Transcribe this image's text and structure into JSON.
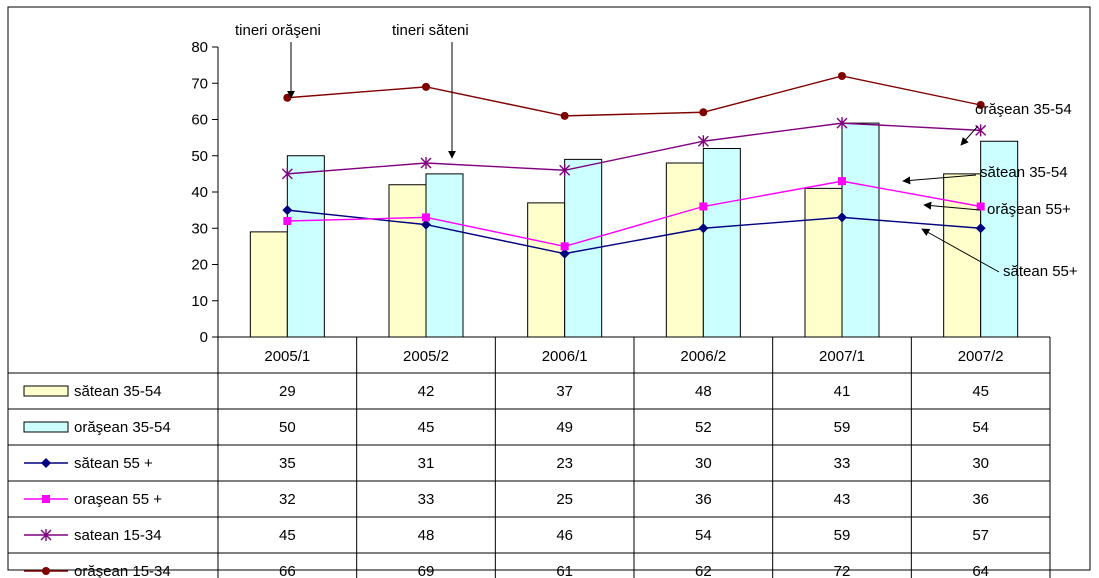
{
  "chart_data": {
    "type": "bar",
    "categories": [
      "2005/1",
      "2005/2",
      "2006/1",
      "2006/2",
      "2007/1",
      "2007/2"
    ],
    "ylim": [
      0,
      80
    ],
    "yticks": [
      0,
      10,
      20,
      30,
      40,
      50,
      60,
      70,
      80
    ],
    "grid": false,
    "legend_placement": "data-table-left",
    "series": [
      {
        "name": "sătean 35-54",
        "kind": "bar",
        "color": "#FFFFCC",
        "values": [
          29,
          42,
          37,
          48,
          41,
          45
        ]
      },
      {
        "name": "orăşean 35-54",
        "kind": "bar",
        "color": "#CCFFFF",
        "values": [
          50,
          45,
          49,
          52,
          59,
          54
        ]
      },
      {
        "name": "sătean 55 +",
        "kind": "line",
        "marker": "diamond",
        "color": "#000080",
        "values": [
          35,
          31,
          23,
          30,
          33,
          30
        ]
      },
      {
        "name": "oraşean 55 +",
        "kind": "line",
        "marker": "square",
        "color": "#FF00FF",
        "values": [
          32,
          33,
          25,
          36,
          43,
          36
        ]
      },
      {
        "name": "satean 15-34",
        "kind": "line",
        "marker": "star",
        "color": "#800080",
        "values": [
          45,
          48,
          46,
          54,
          59,
          57
        ]
      },
      {
        "name": "orăşean 15-34",
        "kind": "line",
        "marker": "circle",
        "color": "#800000",
        "values": [
          66,
          69,
          61,
          62,
          72,
          64
        ]
      }
    ],
    "annotations": [
      {
        "text": "tineri orăşeni",
        "target": {
          "series": 5,
          "point": 0
        }
      },
      {
        "text": "tineri săteni",
        "target": {
          "series": 4,
          "point": 1
        }
      },
      {
        "text": "orăşean 35-54",
        "target": {
          "series": 1,
          "point": 5
        }
      },
      {
        "text": "sătean 35-54",
        "target": {
          "series": 0,
          "point": 5
        }
      },
      {
        "text": "orăşean 55+",
        "target": {
          "series": 3,
          "point": 5
        }
      },
      {
        "text": "sătean 55+",
        "target": {
          "series": 2,
          "point": 5
        }
      }
    ]
  }
}
